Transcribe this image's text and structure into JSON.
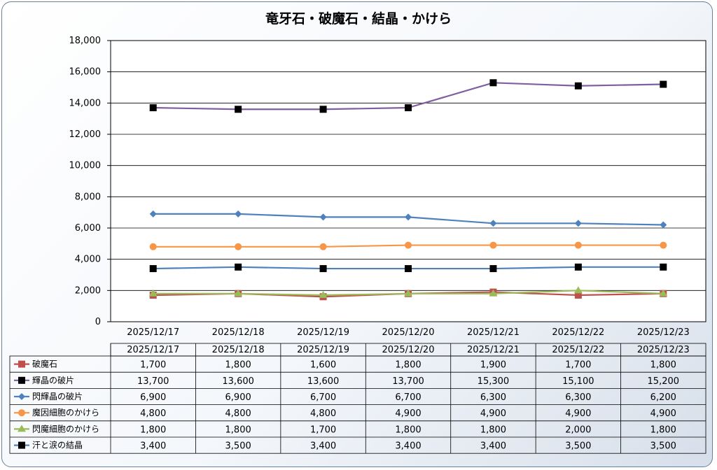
{
  "chart_data": {
    "type": "line",
    "title": "竜牙石・破魔石・結晶・かけら",
    "xlabel": "",
    "ylabel": "",
    "ylim": [
      0,
      18000
    ],
    "yticks": [
      "0",
      "2,000",
      "4,000",
      "6,000",
      "8,000",
      "10,000",
      "12,000",
      "14,000",
      "16,000",
      "18,000"
    ],
    "grid": true,
    "legend": "data-table",
    "categories": [
      "2025/12/17",
      "2025/12/18",
      "2025/12/19",
      "2025/12/20",
      "2025/12/21",
      "2025/12/22",
      "2025/12/23"
    ],
    "series": [
      {
        "name": "破魔石",
        "color": "#c0504d",
        "marker": "square",
        "marker_color": "#c0504d",
        "values": [
          1700,
          1800,
          1600,
          1800,
          1900,
          1700,
          1800
        ],
        "labels": [
          "1,700",
          "1,800",
          "1,600",
          "1,800",
          "1,900",
          "1,700",
          "1,800"
        ]
      },
      {
        "name": "輝晶の破片",
        "color": "#7f5fa0",
        "marker": "square",
        "marker_color": "#000000",
        "values": [
          13700,
          13600,
          13600,
          13700,
          15300,
          15100,
          15200
        ],
        "labels": [
          "13,700",
          "13,600",
          "13,600",
          "13,700",
          "15,300",
          "15,100",
          "15,200"
        ]
      },
      {
        "name": "閃輝晶の破片",
        "color": "#4f81bd",
        "marker": "diamond",
        "marker_color": "#4f81bd",
        "values": [
          6900,
          6900,
          6700,
          6700,
          6300,
          6300,
          6200
        ],
        "labels": [
          "6,900",
          "6,900",
          "6,700",
          "6,700",
          "6,300",
          "6,300",
          "6,200"
        ]
      },
      {
        "name": "魔因細胞のかけら",
        "color": "#f79646",
        "marker": "circle",
        "marker_color": "#f79646",
        "values": [
          4800,
          4800,
          4800,
          4900,
          4900,
          4900,
          4900
        ],
        "labels": [
          "4,800",
          "4,800",
          "4,800",
          "4,900",
          "4,900",
          "4,900",
          "4,900"
        ]
      },
      {
        "name": "閃魔細胞のかけら",
        "color": "#9bbb59",
        "marker": "triangle",
        "marker_color": "#9bbb59",
        "values": [
          1800,
          1800,
          1700,
          1800,
          1800,
          2000,
          1800
        ],
        "labels": [
          "1,800",
          "1,800",
          "1,700",
          "1,800",
          "1,800",
          "2,000",
          "1,800"
        ]
      },
      {
        "name": "汗と涙の結晶",
        "color": "#4f81bd",
        "marker": "square",
        "marker_color": "#000000",
        "values": [
          3400,
          3500,
          3400,
          3400,
          3400,
          3500,
          3500
        ],
        "labels": [
          "3,400",
          "3,500",
          "3,400",
          "3,400",
          "3,400",
          "3,500",
          "3,500"
        ]
      }
    ]
  }
}
